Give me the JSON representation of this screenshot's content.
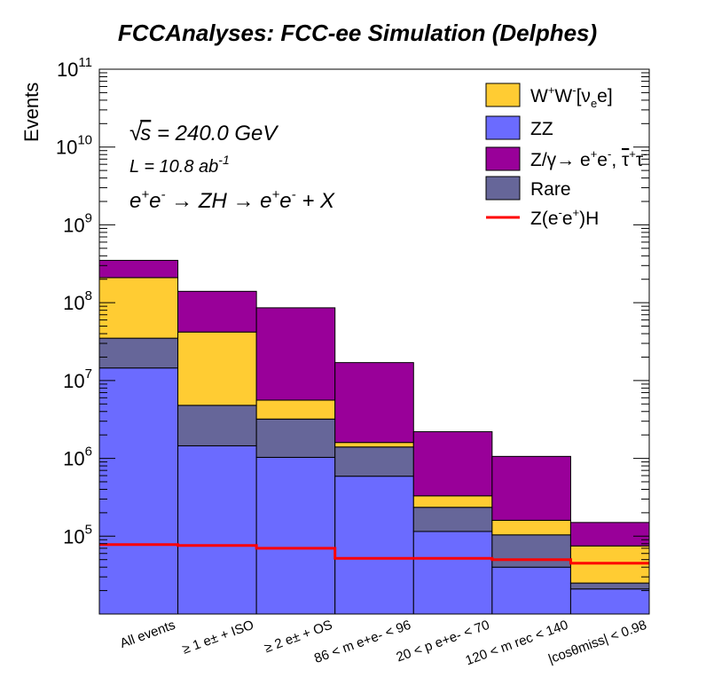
{
  "chart_data": {
    "type": "bar",
    "stacked": true,
    "log_scale_y": true,
    "title": "FCCAnalyses: FCC-ee Simulation (Delphes)",
    "ylabel": "Events",
    "ylim": [
      10000,
      100000000000
    ],
    "y_ticks": [
      {
        "value": 100000,
        "base": "10",
        "exp": "5"
      },
      {
        "value": 1000000,
        "base": "10",
        "exp": "6"
      },
      {
        "value": 10000000,
        "base": "10",
        "exp": "7"
      },
      {
        "value": 100000000,
        "base": "10",
        "exp": "8"
      },
      {
        "value": 1000000000,
        "base": "10",
        "exp": "9"
      },
      {
        "value": 10000000000,
        "base": "10",
        "exp": "10"
      },
      {
        "value": 100000000000,
        "base": "10",
        "exp": "11"
      }
    ],
    "categories": [
      "All events",
      "≥ 1 e± + ISO",
      "≥ 2 e± + OS",
      "86 < m e+e- < 96",
      "20 < p e+e- < 70",
      "120 < m rec < 140",
      "|cosθmiss| < 0.98"
    ],
    "series": [
      {
        "name": "ZZ",
        "color": "#6b6bff",
        "values": [
          14500000,
          1450000,
          1030000,
          590000,
          115000,
          40000,
          21000
        ]
      },
      {
        "name": "Rare",
        "color": "#666699",
        "values": [
          20500000,
          3350000,
          2170000,
          810000,
          120000,
          64000,
          4000
        ]
      },
      {
        "name": "W+W-[νee]",
        "color": "#ffcc33",
        "values": [
          175000000,
          37200000,
          2400000,
          200000,
          95000,
          56000,
          50000
        ]
      },
      {
        "name": "Z/γ→ e+e-, τ+τ-",
        "color": "#990099",
        "values": [
          140000000,
          98000000,
          80400000,
          15400000,
          1870000,
          900000,
          75000
        ]
      }
    ],
    "signal": {
      "name": "Z(e-e+)H",
      "color": "#ff0000",
      "values": [
        78000,
        76000,
        70000,
        52000,
        52000,
        50000,
        45000
      ]
    },
    "legend_position": "top-right",
    "legend": [
      {
        "label": "W+W-[νee]",
        "color": "#ffcc33",
        "kind": "box"
      },
      {
        "label": "ZZ",
        "color": "#6b6bff",
        "kind": "box"
      },
      {
        "label": "Z/γ→ e+e-, τ+τ-",
        "color": "#990099",
        "kind": "box"
      },
      {
        "label": "Rare",
        "color": "#666699",
        "kind": "box"
      },
      {
        "label": "Z(e-e+)H",
        "color": "#ff0000",
        "kind": "line"
      }
    ],
    "annotations": {
      "sqrt_s": "√s = 240.0 GeV",
      "lumi": "L = 10.8 ab-1",
      "process": "e+e- → ZH → e+e- + X"
    }
  }
}
